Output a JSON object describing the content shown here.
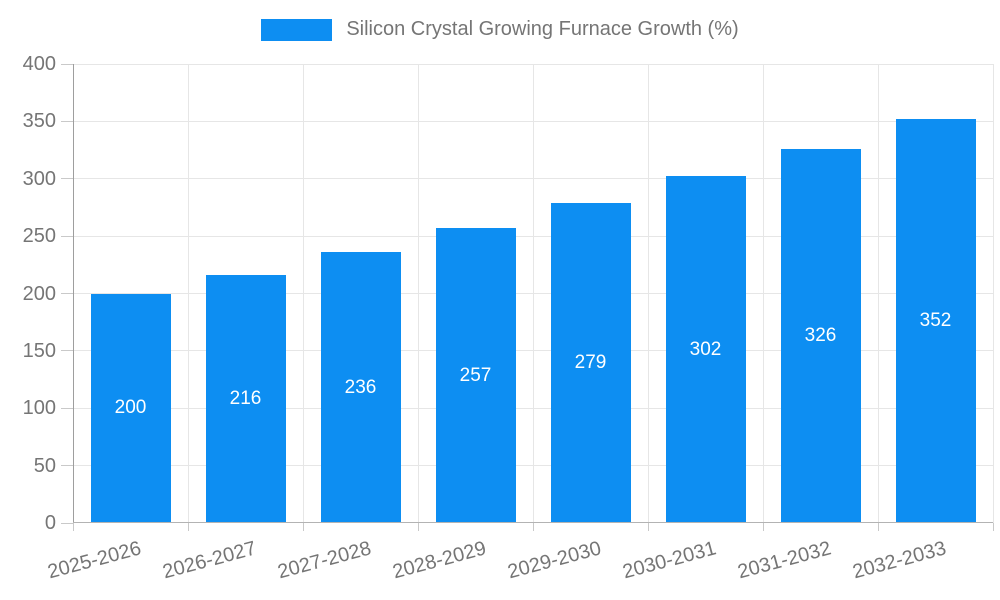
{
  "chart_data": {
    "type": "bar",
    "title": "Silicon Crystal Growing Furnace Growth (%)",
    "categories": [
      "2025-2026",
      "2026-2027",
      "2027-2028",
      "2028-2029",
      "2029-2030",
      "2030-2031",
      "2031-2032",
      "2032-2033"
    ],
    "series": [
      {
        "name": "Silicon Crystal Growing Furnace Growth (%)",
        "values": [
          200,
          216,
          236,
          257,
          279,
          302,
          326,
          352
        ]
      }
    ],
    "xlabel": "",
    "ylabel": "",
    "ylim": [
      0,
      400
    ],
    "ytick_step": 50,
    "yticks": [
      0,
      50,
      100,
      150,
      200,
      250,
      300,
      350,
      400
    ],
    "grid": true,
    "legend_position": "top-center",
    "x_label_rotation": -15,
    "bar_color": "#0d8ef2",
    "bar_value_label_color": "#ffffff",
    "axis_text_color": "#757575",
    "gridline_color": "#e6e6e6",
    "axis_line_color": "#9e9e9e"
  },
  "legend": {
    "label": "Silicon Crystal Growing Furnace Growth (%)",
    "swatch_color": "#0d8ef2"
  }
}
